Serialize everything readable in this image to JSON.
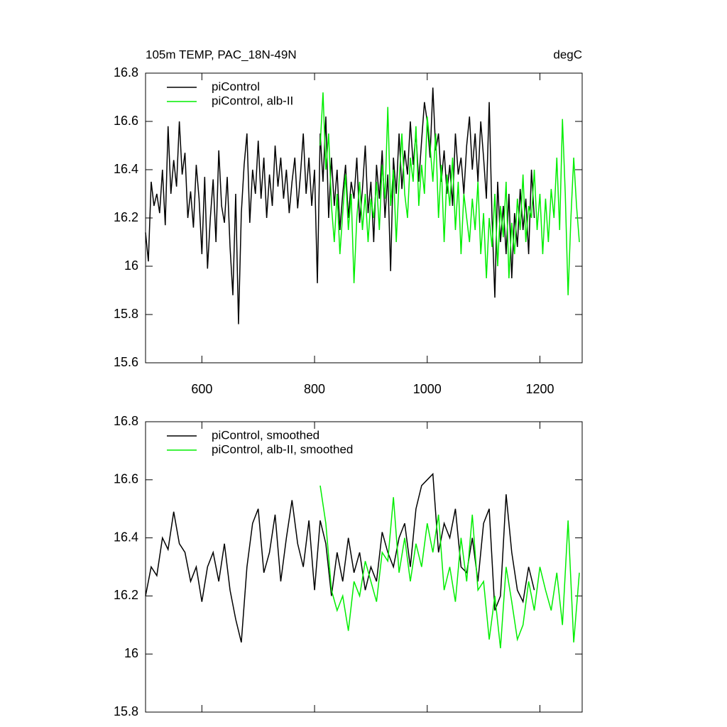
{
  "chart_data": [
    {
      "type": "line",
      "title": "105m TEMP, PAC_18N-49N",
      "units": "degC",
      "xlim": [
        500,
        1275
      ],
      "xticks": [
        600,
        800,
        1000,
        1200
      ],
      "ylim": [
        15.6,
        16.8
      ],
      "yticks": [
        15.6,
        15.8,
        16.0,
        16.2,
        16.4,
        16.6,
        16.8
      ],
      "series": [
        {
          "name": "piControl",
          "color": "#000000",
          "x_start": 500,
          "x_step": 5,
          "values": [
            16.14,
            16.02,
            16.35,
            16.25,
            16.3,
            16.22,
            16.4,
            16.17,
            16.58,
            16.3,
            16.44,
            16.33,
            16.6,
            16.38,
            16.47,
            16.2,
            16.31,
            16.16,
            16.42,
            16.28,
            16.05,
            16.37,
            15.99,
            16.2,
            16.36,
            16.1,
            16.48,
            16.25,
            16.18,
            16.37,
            16.08,
            15.88,
            16.3,
            15.76,
            16.22,
            16.42,
            16.55,
            16.18,
            16.4,
            16.3,
            16.52,
            16.28,
            16.45,
            16.2,
            16.38,
            16.25,
            16.5,
            16.33,
            16.45,
            16.28,
            16.4,
            16.22,
            16.35,
            16.45,
            16.24,
            16.38,
            16.55,
            16.3,
            16.45,
            16.25,
            16.4,
            15.93,
            16.55,
            16.35,
            16.62,
            16.2,
            16.45,
            16.25,
            16.4,
            16.15,
            16.3,
            16.42,
            16.2,
            16.35,
            16.28,
            16.45,
            16.18,
            16.32,
            16.5,
            16.22,
            16.35,
            16.1,
            16.42,
            16.28,
            16.48,
            16.2,
            16.38,
            15.98,
            16.45,
            16.3,
            16.55,
            16.32,
            16.48,
            16.38,
            16.6,
            16.42,
            16.55,
            16.35,
            16.52,
            16.68,
            16.6,
            16.45,
            16.74,
            16.48,
            16.55,
            16.35,
            16.48,
            16.3,
            16.42,
            16.25,
            16.55,
            16.38,
            16.45,
            16.3,
            16.5,
            16.62,
            16.4,
            16.55,
            16.35,
            16.6,
            16.45,
            16.28,
            16.68,
            16.2,
            15.87,
            16.35,
            16.1,
            16.25,
            16.05,
            16.3,
            15.95,
            16.22,
            16.08,
            16.32,
            16.15,
            16.28,
            16.05,
            16.4,
            16.2
          ]
        },
        {
          "name": "piControl, alb-II",
          "color": "#00ee00",
          "x_start": 810,
          "x_step": 5,
          "values": [
            16.5,
            16.72,
            16.4,
            16.55,
            16.25,
            16.1,
            16.3,
            16.05,
            16.22,
            16.38,
            16.15,
            16.3,
            15.93,
            16.2,
            16.35,
            16.15,
            16.3,
            16.1,
            16.28,
            16.2,
            16.35,
            16.15,
            16.42,
            16.28,
            16.66,
            16.25,
            16.4,
            16.1,
            16.35,
            16.55,
            16.3,
            16.2,
            16.45,
            16.35,
            16.58,
            16.25,
            16.42,
            16.3,
            16.62,
            16.5,
            16.35,
            16.55,
            16.2,
            16.42,
            16.1,
            16.38,
            16.25,
            16.45,
            16.15,
            16.35,
            16.05,
            16.3,
            16.2,
            16.1,
            16.28,
            16.15,
            16.35,
            16.05,
            16.22,
            15.95,
            16.2,
            16.08,
            16.3,
            16.0,
            16.25,
            16.12,
            16.35,
            15.95,
            16.18,
            16.05,
            16.28,
            16.15,
            16.38,
            16.1,
            16.25,
            16.2,
            16.4,
            16.15,
            16.3,
            16.05,
            16.28,
            16.1,
            16.32,
            16.2,
            16.45,
            16.15,
            16.61,
            16.3,
            15.88,
            16.2,
            16.45,
            16.25,
            16.1
          ]
        }
      ]
    },
    {
      "type": "line",
      "xlim": [
        500,
        1275
      ],
      "xticks": [
        600,
        800,
        1000,
        1200
      ],
      "ylim": [
        15.8,
        16.8
      ],
      "yticks": [
        15.8,
        16.0,
        16.2,
        16.4,
        16.6,
        16.8
      ],
      "series": [
        {
          "name": "piControl, smoothed",
          "color": "#000000",
          "x_start": 500,
          "x_step": 10,
          "values": [
            16.2,
            16.3,
            16.27,
            16.4,
            16.36,
            16.49,
            16.38,
            16.35,
            16.25,
            16.3,
            16.18,
            16.3,
            16.35,
            16.25,
            16.38,
            16.22,
            16.12,
            16.04,
            16.3,
            16.45,
            16.5,
            16.28,
            16.35,
            16.48,
            16.25,
            16.4,
            16.53,
            16.38,
            16.3,
            16.46,
            16.22,
            16.46,
            16.38,
            16.2,
            16.35,
            16.25,
            16.4,
            16.28,
            16.35,
            16.22,
            16.3,
            16.25,
            16.42,
            16.35,
            16.3,
            16.4,
            16.45,
            16.3,
            16.5,
            16.58,
            16.6,
            16.62,
            16.35,
            16.45,
            16.4,
            16.5,
            16.3,
            16.28,
            16.4,
            16.25,
            16.45,
            16.5,
            16.15,
            16.2,
            16.55,
            16.35,
            16.22,
            16.18,
            16.3,
            16.22
          ]
        },
        {
          "name": "piControl, alb-II, smoothed",
          "color": "#00ee00",
          "x_start": 810,
          "x_step": 10,
          "values": [
            16.58,
            16.45,
            16.22,
            16.15,
            16.2,
            16.08,
            16.25,
            16.2,
            16.32,
            16.25,
            16.18,
            16.35,
            16.32,
            16.54,
            16.28,
            16.4,
            16.25,
            16.38,
            16.3,
            16.45,
            16.35,
            16.48,
            16.22,
            16.3,
            16.18,
            16.4,
            16.25,
            16.48,
            16.22,
            16.25,
            16.05,
            16.2,
            16.02,
            16.3,
            16.18,
            16.05,
            16.1,
            16.25,
            16.15,
            16.3,
            16.22,
            16.15,
            16.28,
            16.1,
            16.46,
            16.04,
            16.28
          ]
        }
      ]
    }
  ]
}
